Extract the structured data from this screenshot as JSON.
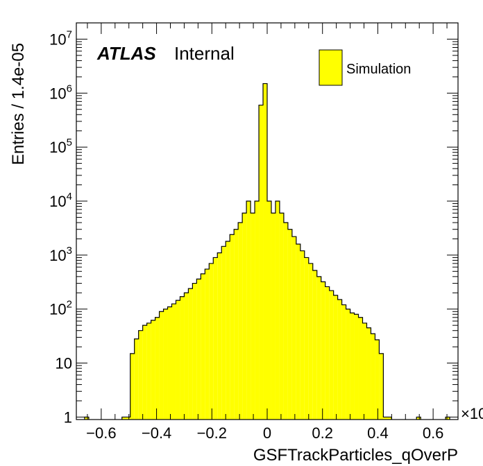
{
  "chart_data": {
    "type": "histogram",
    "xlabel": "GSFTrackParticles_qOverP",
    "ylabel": "Entries / 1.4e-05",
    "x_multiplier_label": "×10",
    "xlim": [
      -0.69,
      0.69
    ],
    "ylim": [
      0.9,
      20000000
    ],
    "y_scale": "log",
    "grid": false,
    "legend_position": "top-right",
    "atlas_label": "ATLAS",
    "atlas_sublabel": "Internal",
    "x_ticks": [
      -0.6,
      -0.4,
      -0.2,
      0,
      0.2,
      0.4,
      0.6
    ],
    "x_tick_labels": [
      "−0.6",
      "−0.4",
      "−0.2",
      "0",
      "0.2",
      "0.4",
      "0.6"
    ],
    "y_ticks": [
      {
        "value": 1,
        "base": "1",
        "exp": ""
      },
      {
        "value": 10,
        "base": "10",
        "exp": ""
      },
      {
        "value": 100,
        "base": "10",
        "exp": "2"
      },
      {
        "value": 1000,
        "base": "10",
        "exp": "3"
      },
      {
        "value": 10000,
        "base": "10",
        "exp": "4"
      },
      {
        "value": 100000,
        "base": "10",
        "exp": "5"
      },
      {
        "value": 1000000,
        "base": "10",
        "exp": "6"
      },
      {
        "value": 10000000,
        "base": "10",
        "exp": "7"
      }
    ],
    "series": [
      {
        "name": "Simulation",
        "color": "#ffff00",
        "edges": [
          -0.69,
          -0.675,
          -0.66,
          -0.645,
          -0.63,
          -0.615,
          -0.6,
          -0.585,
          -0.57,
          -0.555,
          -0.54,
          -0.525,
          -0.51,
          -0.495,
          -0.48,
          -0.465,
          -0.45,
          -0.435,
          -0.42,
          -0.405,
          -0.39,
          -0.375,
          -0.36,
          -0.345,
          -0.33,
          -0.315,
          -0.3,
          -0.285,
          -0.27,
          -0.255,
          -0.24,
          -0.225,
          -0.21,
          -0.195,
          -0.18,
          -0.165,
          -0.15,
          -0.135,
          -0.12,
          -0.105,
          -0.09,
          -0.075,
          -0.06,
          -0.045,
          -0.03,
          -0.015,
          0,
          0.015,
          0.03,
          0.045,
          0.06,
          0.075,
          0.09,
          0.105,
          0.12,
          0.135,
          0.15,
          0.165,
          0.18,
          0.195,
          0.21,
          0.225,
          0.24,
          0.255,
          0.27,
          0.285,
          0.3,
          0.315,
          0.33,
          0.345,
          0.36,
          0.375,
          0.39,
          0.405,
          0.42,
          0.435,
          0.45,
          0.465,
          0.48,
          0.495,
          0.51,
          0.525,
          0.54,
          0.555,
          0.57,
          0.585,
          0.6,
          0.615,
          0.63,
          0.645,
          0.66,
          0.675,
          0.69
        ],
        "values": [
          0,
          0,
          1,
          0,
          0,
          0,
          0,
          0,
          0,
          0,
          0,
          1,
          1,
          15,
          28,
          40,
          50,
          55,
          62,
          70,
          90,
          100,
          110,
          125,
          145,
          170,
          200,
          240,
          300,
          360,
          450,
          550,
          700,
          900,
          1100,
          1450,
          1800,
          2400,
          3000,
          4000,
          6000,
          10000,
          6000,
          10000,
          600000,
          1500000,
          10000,
          6000,
          10000,
          6000,
          4000,
          3000,
          2200,
          1600,
          1200,
          900,
          700,
          520,
          400,
          320,
          260,
          220,
          180,
          150,
          120,
          100,
          85,
          80,
          70,
          55,
          45,
          35,
          27,
          15,
          1,
          1,
          0,
          0,
          0,
          0,
          0,
          0,
          1,
          0,
          0,
          0,
          0,
          0,
          0,
          1,
          0,
          0
        ]
      }
    ]
  }
}
